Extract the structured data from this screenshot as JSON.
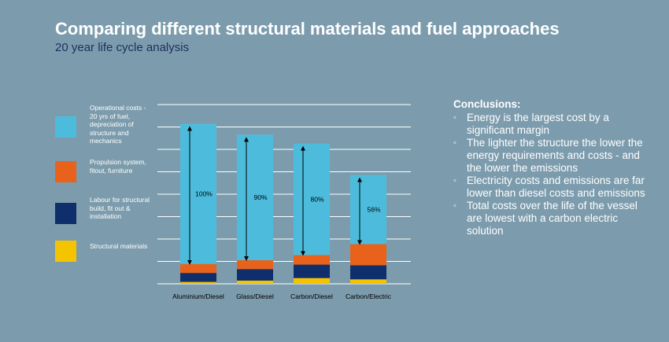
{
  "header": {
    "title": "Comparing different structural materials and fuel approaches",
    "subtitle": "20 year life cycle analysis"
  },
  "legend": [
    {
      "label": "Operational costs - 20 yrs of fuel, depreciation of structure and mechanics",
      "color": "#4dbcdc"
    },
    {
      "label": "Propulsion system, fitout, furniture",
      "color": "#e8621c"
    },
    {
      "label": "Labour for structural build, fit out & installation",
      "color": "#0e2f6b"
    },
    {
      "label": "Structural materials",
      "color": "#f5c400"
    }
  ],
  "chart_data": {
    "type": "bar",
    "stacked": true,
    "categories": [
      "Aluminium/Diesel",
      "Glass/Diesel",
      "Carbon/Diesel",
      "Carbon/Electric"
    ],
    "series": [
      {
        "name": "Structural materials",
        "values": [
          1.5,
          2.5,
          4.5,
          3.5
        ],
        "color": "#f5c400"
      },
      {
        "name": "Labour for structural build, fit out & installation",
        "values": [
          7,
          9,
          10.5,
          11
        ],
        "color": "#0e2f6b"
      },
      {
        "name": "Propulsion system, fitout, furniture",
        "values": [
          7,
          7,
          7.5,
          16.5
        ],
        "color": "#e8621c"
      },
      {
        "name": "Operational costs - 20 yrs of fuel, depreciation of structure and mechanics",
        "values": [
          109.5,
          98,
          87,
          54
        ],
        "color": "#4dbcdc"
      }
    ],
    "annotations": [
      "100%",
      "90%",
      "80%",
      "56%"
    ],
    "ylim": [
      0,
      140
    ],
    "grid": true
  },
  "conclusions": {
    "heading": "Conclusions:",
    "bullet": "◦",
    "items": [
      "Energy is the largest cost by a significant margin",
      "The lighter the structure the lower the energy requirements and costs - and the lower the emissions",
      "Electricity costs and emissions are far lower than diesel costs and emissions",
      "Total costs over the life of the vessel are lowest with a carbon electric solution"
    ]
  }
}
